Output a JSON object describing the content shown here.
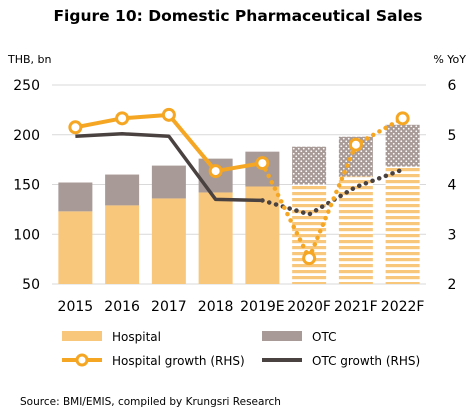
{
  "chart_data": {
    "type": "bar",
    "title": "Figure 10: Domestic Pharmaceutical Sales",
    "left_axis_unit": "THB, bn",
    "right_axis_unit": "% YoY",
    "categories": [
      "2015",
      "2016",
      "2017",
      "2018",
      "2019E",
      "2020F",
      "2021F",
      "2022F"
    ],
    "forecast_categories": [
      "2020F",
      "2021F",
      "2022F"
    ],
    "left_axis": {
      "min": 50,
      "max": 250,
      "ticks": [
        50,
        100,
        150,
        200,
        250
      ]
    },
    "right_axis": {
      "min": 2,
      "max": 6,
      "ticks": [
        2,
        3,
        4,
        5,
        6
      ]
    },
    "bars": [
      {
        "name": "Hospital",
        "axis": "left",
        "color": "#F9C77C",
        "values": [
          123,
          129,
          136,
          142,
          148,
          150,
          158,
          168
        ]
      },
      {
        "name": "OTC",
        "axis": "left",
        "color": "#A89A96",
        "values": [
          29,
          31,
          33,
          34,
          35,
          38,
          40,
          42
        ]
      }
    ],
    "lines": [
      {
        "name": "Hospital growth (RHS)",
        "axis": "right",
        "color": "#F5A623",
        "marker": "circle",
        "values": [
          5.15,
          5.33,
          5.4,
          4.27,
          4.43,
          2.52,
          4.8,
          5.33
        ]
      },
      {
        "name": "OTC growth (RHS)",
        "axis": "right",
        "color": "#4A4240",
        "marker": "none",
        "values": [
          4.97,
          5.02,
          4.97,
          3.7,
          3.68,
          3.4,
          3.95,
          4.3
        ]
      }
    ],
    "legend_position": "bottom"
  },
  "source": "Source: BMI/EMIS,  compiled by Krungsri Research"
}
